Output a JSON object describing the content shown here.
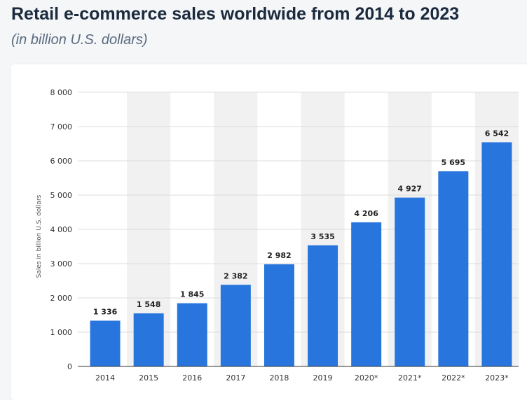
{
  "header": {
    "title": "Retail e-commerce sales worldwide from 2014 to 2023",
    "subtitle": "(in billion U.S. dollars)"
  },
  "colors": {
    "bar": "#2876dd",
    "band": "#f1f1f1",
    "grid": "#dcdcdc"
  },
  "chart_data": {
    "type": "bar",
    "categories": [
      "2014",
      "2015",
      "2016",
      "2017",
      "2018",
      "2019",
      "2020*",
      "2021*",
      "2022*",
      "2023*"
    ],
    "values": [
      1336,
      1548,
      1845,
      2382,
      2982,
      3535,
      4206,
      4927,
      5695,
      6542
    ],
    "value_labels": [
      "1 336",
      "1 548",
      "1 845",
      "2 382",
      "2 982",
      "3 535",
      "4 206",
      "4 927",
      "5 695",
      "6 542"
    ],
    "yticks": [
      0,
      1000,
      2000,
      3000,
      4000,
      5000,
      6000,
      7000,
      8000
    ],
    "ytick_labels": [
      "0",
      "1 000",
      "2 000",
      "3 000",
      "4 000",
      "5 000",
      "6 000",
      "7 000",
      "8 000"
    ],
    "ylim": [
      0,
      8000
    ],
    "xlabel": "",
    "ylabel": "Sales in billion U.S. dollars",
    "title": "Retail e-commerce sales worldwide from 2014 to 2023",
    "grid": true
  }
}
